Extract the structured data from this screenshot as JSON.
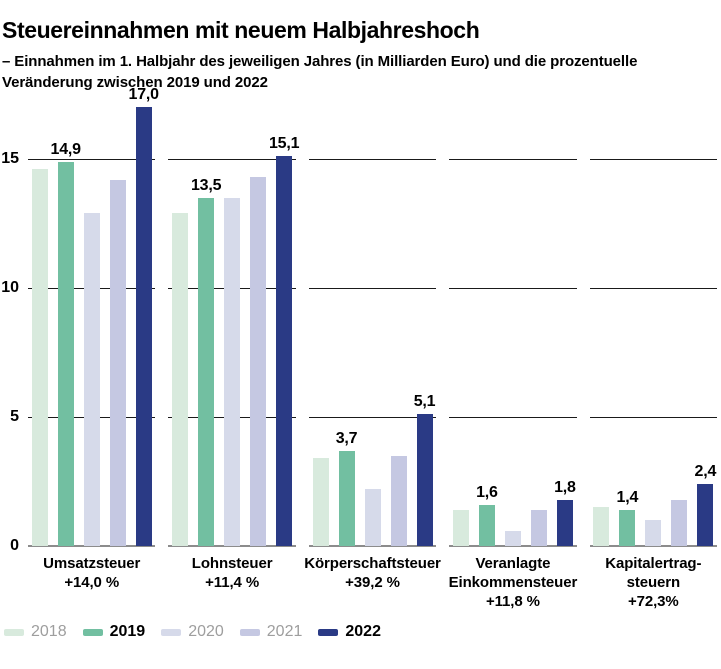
{
  "header": {
    "title": "Steuereinnahmen mit neuem Halbjahreshoch",
    "subtitle": "– Einnahmen im 1. Halbjahr des jeweiligen Jahres (in Milliarden Euro) und die prozentuelle Veränderung zwischen 2019 und 2022"
  },
  "chart_data": {
    "type": "bar",
    "title": "Steuereinnahmen mit neuem Halbjahreshoch",
    "xlabel": "",
    "ylabel": "",
    "ylim": [
      0,
      17.8
    ],
    "yticks": [
      0,
      5,
      10,
      15
    ],
    "grid": "horizontal gridlines, drawn per group with gaps",
    "legend_position": "bottom-left",
    "series_names": [
      "2018",
      "2019",
      "2020",
      "2021",
      "2022"
    ],
    "series_colors": [
      "#d8eadd",
      "#72bfa1",
      "#d6daea",
      "#c5c8e2",
      "#2a3a85"
    ],
    "legend": [
      {
        "label": "2018",
        "bold": false
      },
      {
        "label": "2019",
        "bold": true
      },
      {
        "label": "2020",
        "bold": false
      },
      {
        "label": "2021",
        "bold": false
      },
      {
        "label": "2022",
        "bold": true
      }
    ],
    "groups": [
      {
        "name_lines": [
          "Umsatzsteuer"
        ],
        "change": "+14,0 %",
        "values": [
          14.6,
          14.9,
          12.9,
          14.2,
          17.0
        ],
        "annotations": [
          null,
          "14,9",
          null,
          null,
          "17,0"
        ]
      },
      {
        "name_lines": [
          "Lohnsteuer"
        ],
        "change": "+11,4 %",
        "values": [
          12.9,
          13.5,
          13.5,
          14.3,
          15.1
        ],
        "annotations": [
          null,
          "13,5",
          null,
          null,
          "15,1"
        ]
      },
      {
        "name_lines": [
          "Körperschaftsteuer"
        ],
        "change": "+39,2 %",
        "values": [
          3.4,
          3.7,
          2.2,
          3.5,
          5.1
        ],
        "annotations": [
          null,
          "3,7",
          null,
          null,
          "5,1"
        ]
      },
      {
        "name_lines": [
          "Veranlagte",
          "Einkommensteuer"
        ],
        "change": "+11,8 %",
        "values": [
          1.4,
          1.6,
          0.6,
          1.4,
          1.8
        ],
        "annotations": [
          null,
          "1,6",
          null,
          null,
          "1,8"
        ]
      },
      {
        "name_lines": [
          "Kapitalertrag-",
          "steuern"
        ],
        "change": "+72,3%",
        "values": [
          1.5,
          1.4,
          1.0,
          1.8,
          2.4
        ],
        "annotations": [
          null,
          "1,4",
          null,
          null,
          "2,4"
        ]
      }
    ],
    "style_colors": {
      "gridline": "#1a1a1a",
      "baseline": "#8c8c8c",
      "legend_muted_text": "#9e9e9e",
      "legend_bold_text": "#000000",
      "background": "#ffffff"
    }
  }
}
